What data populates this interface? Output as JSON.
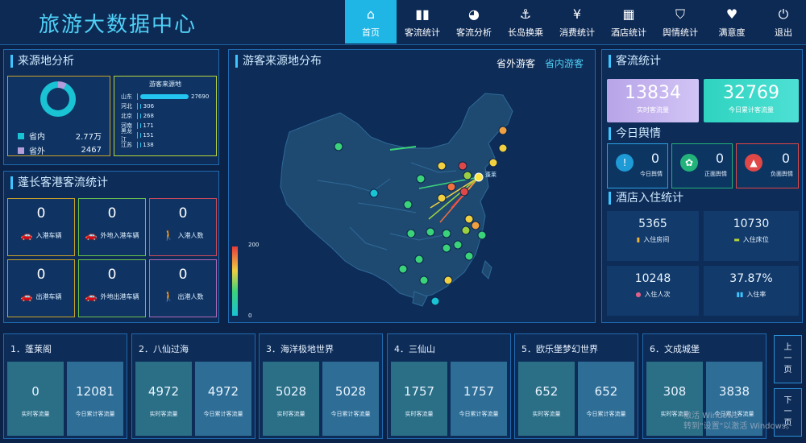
{
  "app_title": "旅游大数据中心",
  "nav": [
    "首页",
    "客流统计",
    "客流分析",
    "长岛换乘",
    "消费统计",
    "酒店统计",
    "舆情统计",
    "满意度",
    "退出"
  ],
  "source_panel": {
    "title": "来源地分析",
    "legend": [
      {
        "label": "省内",
        "value": "2.77万",
        "color": "#19c3d4"
      },
      {
        "label": "省外",
        "value": "2467",
        "color": "#b39ddb"
      }
    ],
    "mini_title": "游客来源地",
    "bars": [
      {
        "name": "山东",
        "value": 27690,
        "label": "27690"
      },
      {
        "name": "河北",
        "value": 306,
        "label": "306"
      },
      {
        "name": "北京",
        "value": 268,
        "label": "268"
      },
      {
        "name": "河南",
        "value": 171,
        "label": "171"
      },
      {
        "name": "黑龙江",
        "value": 151,
        "label": "151"
      },
      {
        "name": "江苏",
        "value": 138,
        "label": "138"
      }
    ]
  },
  "port_panel": {
    "title": "蓬长客港客流统计",
    "cells": [
      {
        "value": "0",
        "label": "入港车辆",
        "icon": "car-icon"
      },
      {
        "value": "0",
        "label": "外地入港车辆",
        "icon": "car-icon"
      },
      {
        "value": "0",
        "label": "入港人数",
        "icon": "person-icon"
      },
      {
        "value": "0",
        "label": "出港车辆",
        "icon": "car-icon"
      },
      {
        "value": "0",
        "label": "外地出港车辆",
        "icon": "car-icon"
      },
      {
        "value": "0",
        "label": "出港人数",
        "icon": "person-icon"
      }
    ]
  },
  "map_panel": {
    "title": "游客来源地分布",
    "tab_outside": "省外游客",
    "tab_inside": "省内游客",
    "scale_max": "200",
    "scale_min": "0",
    "marker_label": "蓬莱"
  },
  "flow_panel": {
    "title": "客流统计",
    "realtime_value": "13834",
    "realtime_label": "实时客流量",
    "today_value": "32769",
    "today_label": "今日累计客流量"
  },
  "opinion_panel": {
    "title": "今日舆情",
    "items": [
      {
        "value": "0",
        "label": "今日舆情",
        "color": "#1e9ad6"
      },
      {
        "value": "0",
        "label": "正面舆情",
        "color": "#22b37a"
      },
      {
        "value": "0",
        "label": "负面舆情",
        "color": "#e04848"
      }
    ]
  },
  "hotel_panel": {
    "title": "酒店入住统计",
    "cells": [
      {
        "value": "5365",
        "label": "入住房间"
      },
      {
        "value": "10730",
        "label": "入住床位"
      },
      {
        "value": "10248",
        "label": "入住人次"
      },
      {
        "value": "37.87%",
        "label": "入住率"
      }
    ]
  },
  "scenic": [
    {
      "name": "1．蓬莱阁",
      "realtime": "0",
      "today": "12081"
    },
    {
      "name": "2．八仙过海",
      "realtime": "4972",
      "today": "4972"
    },
    {
      "name": "3．海洋极地世界",
      "realtime": "5028",
      "today": "5028"
    },
    {
      "name": "4．三仙山",
      "realtime": "1757",
      "today": "1757"
    },
    {
      "name": "5．欧乐堡梦幻世界",
      "realtime": "652",
      "today": "652"
    },
    {
      "name": "6．文成城堡",
      "realtime": "308",
      "today": "3838"
    }
  ],
  "scenic_labels": {
    "realtime": "实时客流量",
    "today": "今日累计客流量"
  },
  "pager": {
    "prev": "上一页",
    "next": "下一页"
  },
  "watermark": {
    "line1": "激活 Windows",
    "line2": "转到\"设置\"以激活 Windows。"
  }
}
